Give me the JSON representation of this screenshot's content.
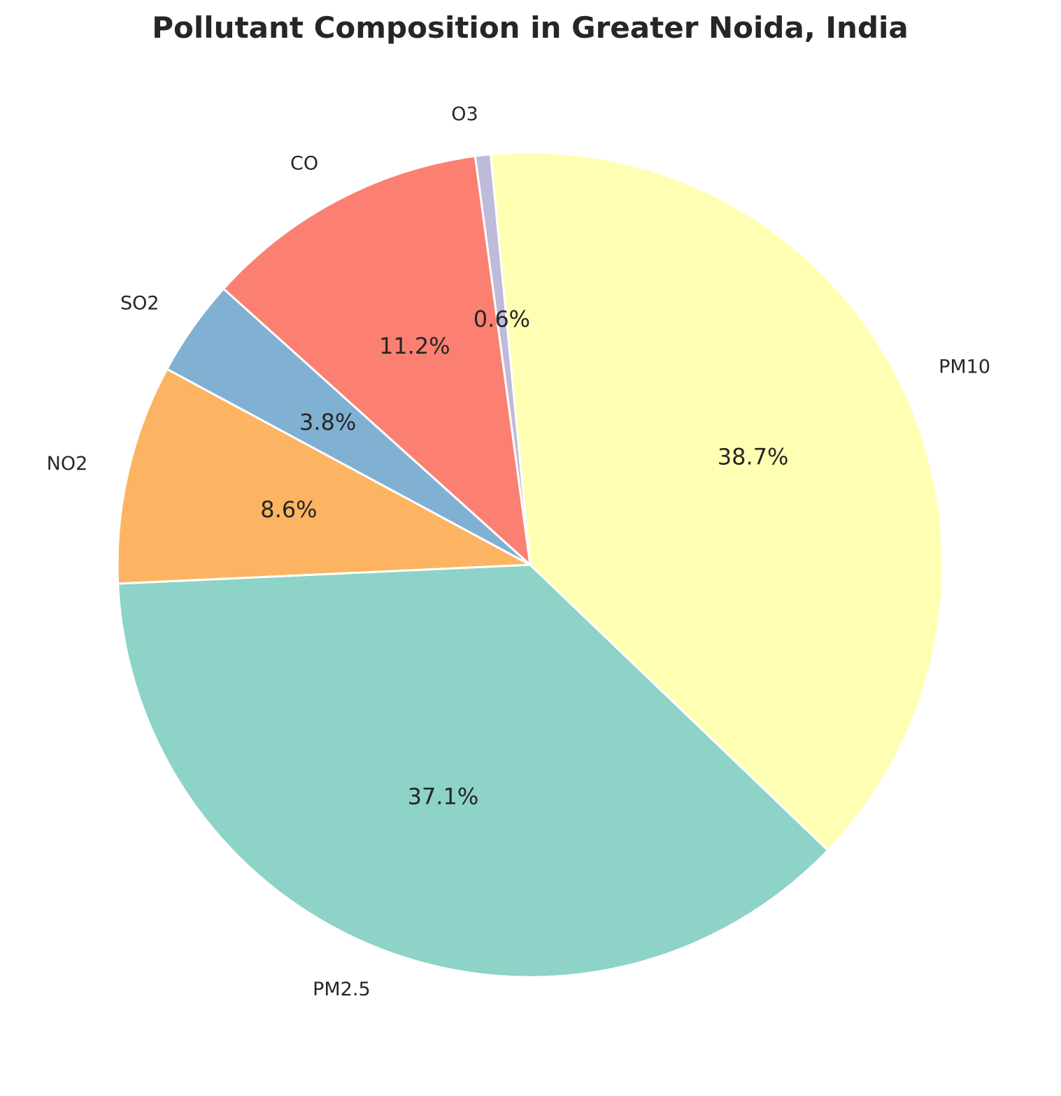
{
  "chart_data": {
    "type": "pie",
    "title": "Pollutant Composition in Greater Noida, India",
    "start_angle_deg": -95.5,
    "direction": "clockwise",
    "slices": [
      {
        "label": "PM10",
        "value": 38.7,
        "pct_label": "38.7%",
        "color": "#ffffb3"
      },
      {
        "label": "PM2.5",
        "value": 37.1,
        "pct_label": "37.1%",
        "color": "#8dd3c7"
      },
      {
        "label": "NO2",
        "value": 8.6,
        "pct_label": "8.6%",
        "color": "#fdb462"
      },
      {
        "label": "SO2",
        "value": 3.8,
        "pct_label": "3.8%",
        "color": "#80b1d3"
      },
      {
        "label": "CO",
        "value": 11.2,
        "pct_label": "11.2%",
        "color": "#fb8072"
      },
      {
        "label": "O3",
        "value": 0.6,
        "pct_label": "0.6%",
        "color": "#bebada"
      }
    ]
  }
}
